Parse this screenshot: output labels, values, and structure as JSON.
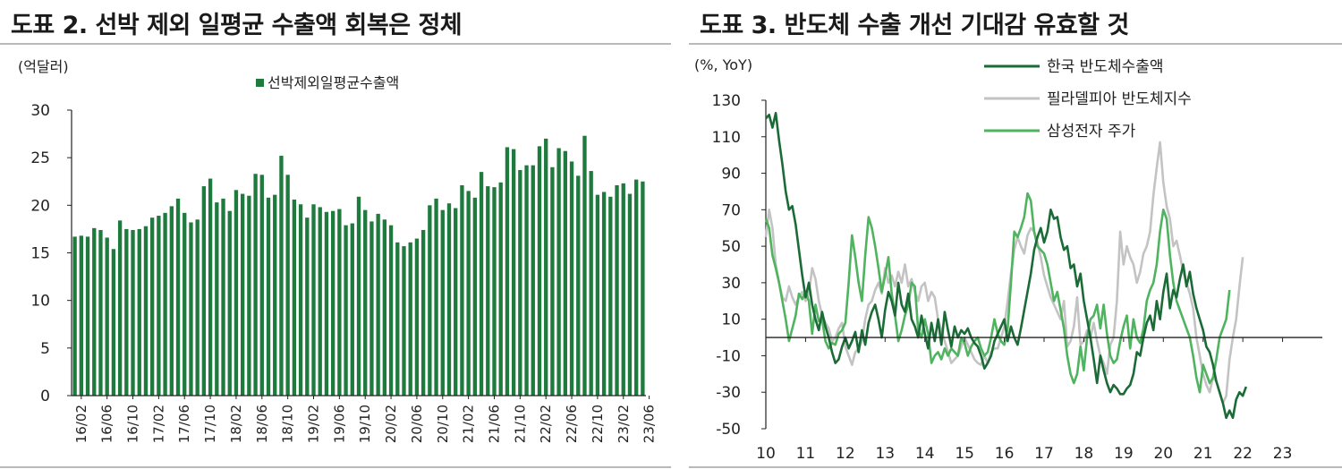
{
  "left": {
    "title": "도표 2. 선박 제외 일평균 수출액 회복은 정체",
    "unit": "(억달러)",
    "chart_data": {
      "type": "bar",
      "legend": [
        "선박제외일평균수출액"
      ],
      "ylim": [
        0,
        30
      ],
      "yticks": [
        0,
        5,
        10,
        15,
        20,
        25,
        30
      ],
      "xticks": [
        "16/02",
        "16/06",
        "16/10",
        "17/02",
        "17/06",
        "17/10",
        "18/02",
        "18/06",
        "18/10",
        "19/02",
        "19/06",
        "19/10",
        "20/02",
        "20/06",
        "20/10",
        "21/02",
        "21/06",
        "21/10",
        "22/02",
        "22/06",
        "22/10",
        "23/02",
        "23/06"
      ],
      "start": "2016-01",
      "color": "#1f7a3e",
      "values": [
        16.7,
        16.8,
        16.7,
        17.6,
        17.4,
        16.6,
        15.4,
        18.4,
        17.5,
        17.4,
        17.5,
        17.8,
        18.7,
        18.9,
        19.2,
        19.9,
        20.7,
        19.2,
        18.2,
        18.5,
        22.0,
        22.8,
        20.3,
        20.7,
        19.4,
        21.6,
        21.2,
        21.0,
        23.3,
        23.2,
        20.8,
        21.1,
        25.2,
        23.2,
        20.6,
        20.1,
        18.7,
        20.1,
        19.8,
        19.3,
        19.4,
        19.6,
        17.9,
        18.1,
        20.9,
        19.5,
        18.3,
        19.1,
        18.5,
        17.9,
        16.1,
        15.7,
        16.1,
        16.5,
        17.4,
        20.0,
        20.7,
        19.5,
        20.2,
        19.7,
        22.1,
        21.5,
        20.8,
        23.5,
        22.0,
        21.9,
        22.4,
        26.1,
        25.9,
        23.7,
        24.2,
        24.2,
        26.2,
        27.0,
        24.0,
        26.0,
        25.7,
        24.6,
        23.1,
        27.3,
        23.6,
        21.1,
        21.4,
        20.9,
        22.1,
        22.3,
        21.2,
        22.7,
        22.5
      ]
    }
  },
  "right": {
    "title": "도표 3. 반도체 수출 개선 기대감 유효할 것",
    "unit": "(%, YoY)",
    "chart_data": {
      "type": "line",
      "ylim": [
        -50,
        130
      ],
      "yticks": [
        -50,
        -30,
        -10,
        10,
        30,
        50,
        70,
        90,
        110,
        130
      ],
      "xticks": [
        "10",
        "11",
        "12",
        "13",
        "14",
        "15",
        "16",
        "17",
        "18",
        "19",
        "20",
        "21",
        "22",
        "23"
      ],
      "x_start": 2010.0,
      "x_step": 0.08333,
      "series": [
        {
          "name": "한국 반도체수출액",
          "color": "#1b6b37",
          "values": [
            120,
            122,
            115,
            123,
            108,
            95,
            80,
            70,
            72,
            62,
            48,
            34,
            22,
            30,
            18,
            10,
            4,
            14,
            6,
            0,
            -8,
            -14,
            -12,
            -5,
            0,
            -6,
            -2,
            3,
            -8,
            4,
            -4,
            8,
            14,
            18,
            10,
            0,
            15,
            25,
            20,
            12,
            30,
            18,
            14,
            24,
            10,
            6,
            0,
            12,
            2,
            -6,
            8,
            -2,
            10,
            -4,
            14,
            4,
            -5,
            6,
            0,
            4,
            2,
            5,
            0,
            -3,
            -5,
            -10,
            -17,
            -14,
            -10,
            -2,
            2,
            6,
            10,
            -2,
            6,
            0,
            -4,
            5,
            15,
            25,
            35,
            48,
            55,
            60,
            52,
            58,
            70,
            65,
            66,
            55,
            48,
            50,
            38,
            40,
            28,
            35,
            20,
            10,
            0,
            -12,
            -25,
            -10,
            -18,
            -25,
            -30,
            -26,
            -28,
            -31,
            -31,
            -28,
            -26,
            -20,
            -8,
            -10,
            0,
            8,
            12,
            4,
            20,
            10,
            25,
            35,
            16,
            26,
            22,
            32,
            40,
            28,
            36,
            24,
            16,
            10,
            4,
            -5,
            -8,
            -15,
            -24,
            -30,
            -36,
            -44,
            -40,
            -44,
            -34,
            -30,
            -32,
            -27
          ]
        },
        {
          "name": "필라델피아 반도체지수",
          "color": "#c3c3c3",
          "values": [
            55,
            70,
            60,
            40,
            30,
            22,
            20,
            28,
            22,
            18,
            22,
            25,
            20,
            24,
            38,
            32,
            20,
            12,
            8,
            5,
            -2,
            0,
            5,
            8,
            -5,
            -10,
            -15,
            -8,
            -6,
            -2,
            10,
            18,
            20,
            26,
            30,
            24,
            38,
            30,
            34,
            28,
            36,
            30,
            40,
            28,
            32,
            25,
            20,
            28,
            30,
            20,
            25,
            22,
            10,
            4,
            -2,
            -8,
            -14,
            -12,
            -10,
            -5,
            0,
            -4,
            -8,
            -12,
            -14,
            -15,
            -10,
            -14,
            -8,
            -6,
            -6,
            0,
            6,
            20,
            35,
            48,
            55,
            50,
            46,
            56,
            60,
            58,
            52,
            44,
            34,
            28,
            22,
            18,
            14,
            10,
            20,
            -5,
            -2,
            6,
            22,
            -4,
            -2,
            4,
            0,
            8,
            -2,
            -10,
            -14,
            -20,
            -4,
            0,
            20,
            58,
            40,
            50,
            44,
            40,
            30,
            36,
            46,
            50,
            58,
            78,
            93,
            107,
            85,
            72,
            65,
            50,
            53,
            45,
            36,
            30,
            24,
            16,
            0,
            -10,
            -20,
            -26,
            -30,
            -22,
            -24,
            -30,
            -36,
            -32,
            -12,
            0,
            10,
            28,
            44
          ]
        },
        {
          "name": "삼성전자 주가",
          "color": "#4fb35f",
          "values": [
            65,
            60,
            45,
            38,
            30,
            20,
            10,
            -2,
            5,
            12,
            24,
            21,
            25,
            20,
            2,
            18,
            9,
            10,
            -2,
            -6,
            -3,
            -4,
            2,
            4,
            8,
            30,
            56,
            44,
            30,
            20,
            45,
            66,
            60,
            50,
            38,
            25,
            34,
            44,
            24,
            12,
            -2,
            4,
            12,
            18,
            30,
            28,
            4,
            0,
            10,
            2,
            -14,
            -10,
            -8,
            -12,
            -6,
            -10,
            -6,
            -8,
            -10,
            0,
            -3,
            -10,
            -5,
            -2,
            0,
            -6,
            -10,
            -8,
            0,
            10,
            2,
            -2,
            -4,
            5,
            30,
            58,
            55,
            60,
            66,
            79,
            75,
            58,
            50,
            48,
            46,
            40,
            30,
            20,
            25,
            15,
            5,
            -10,
            -20,
            -25,
            -20,
            -5,
            -18,
            0,
            10,
            12,
            18,
            5,
            18,
            2,
            -10,
            -14,
            -12,
            -2,
            6,
            12,
            -6,
            10,
            0,
            -3,
            5,
            20,
            26,
            30,
            40,
            58,
            70,
            65,
            45,
            30,
            20,
            15,
            10,
            5,
            0,
            -10,
            -22,
            -30,
            -15,
            -20,
            -25,
            -22,
            -12,
            0,
            5,
            10,
            26
          ]
        }
      ]
    }
  }
}
